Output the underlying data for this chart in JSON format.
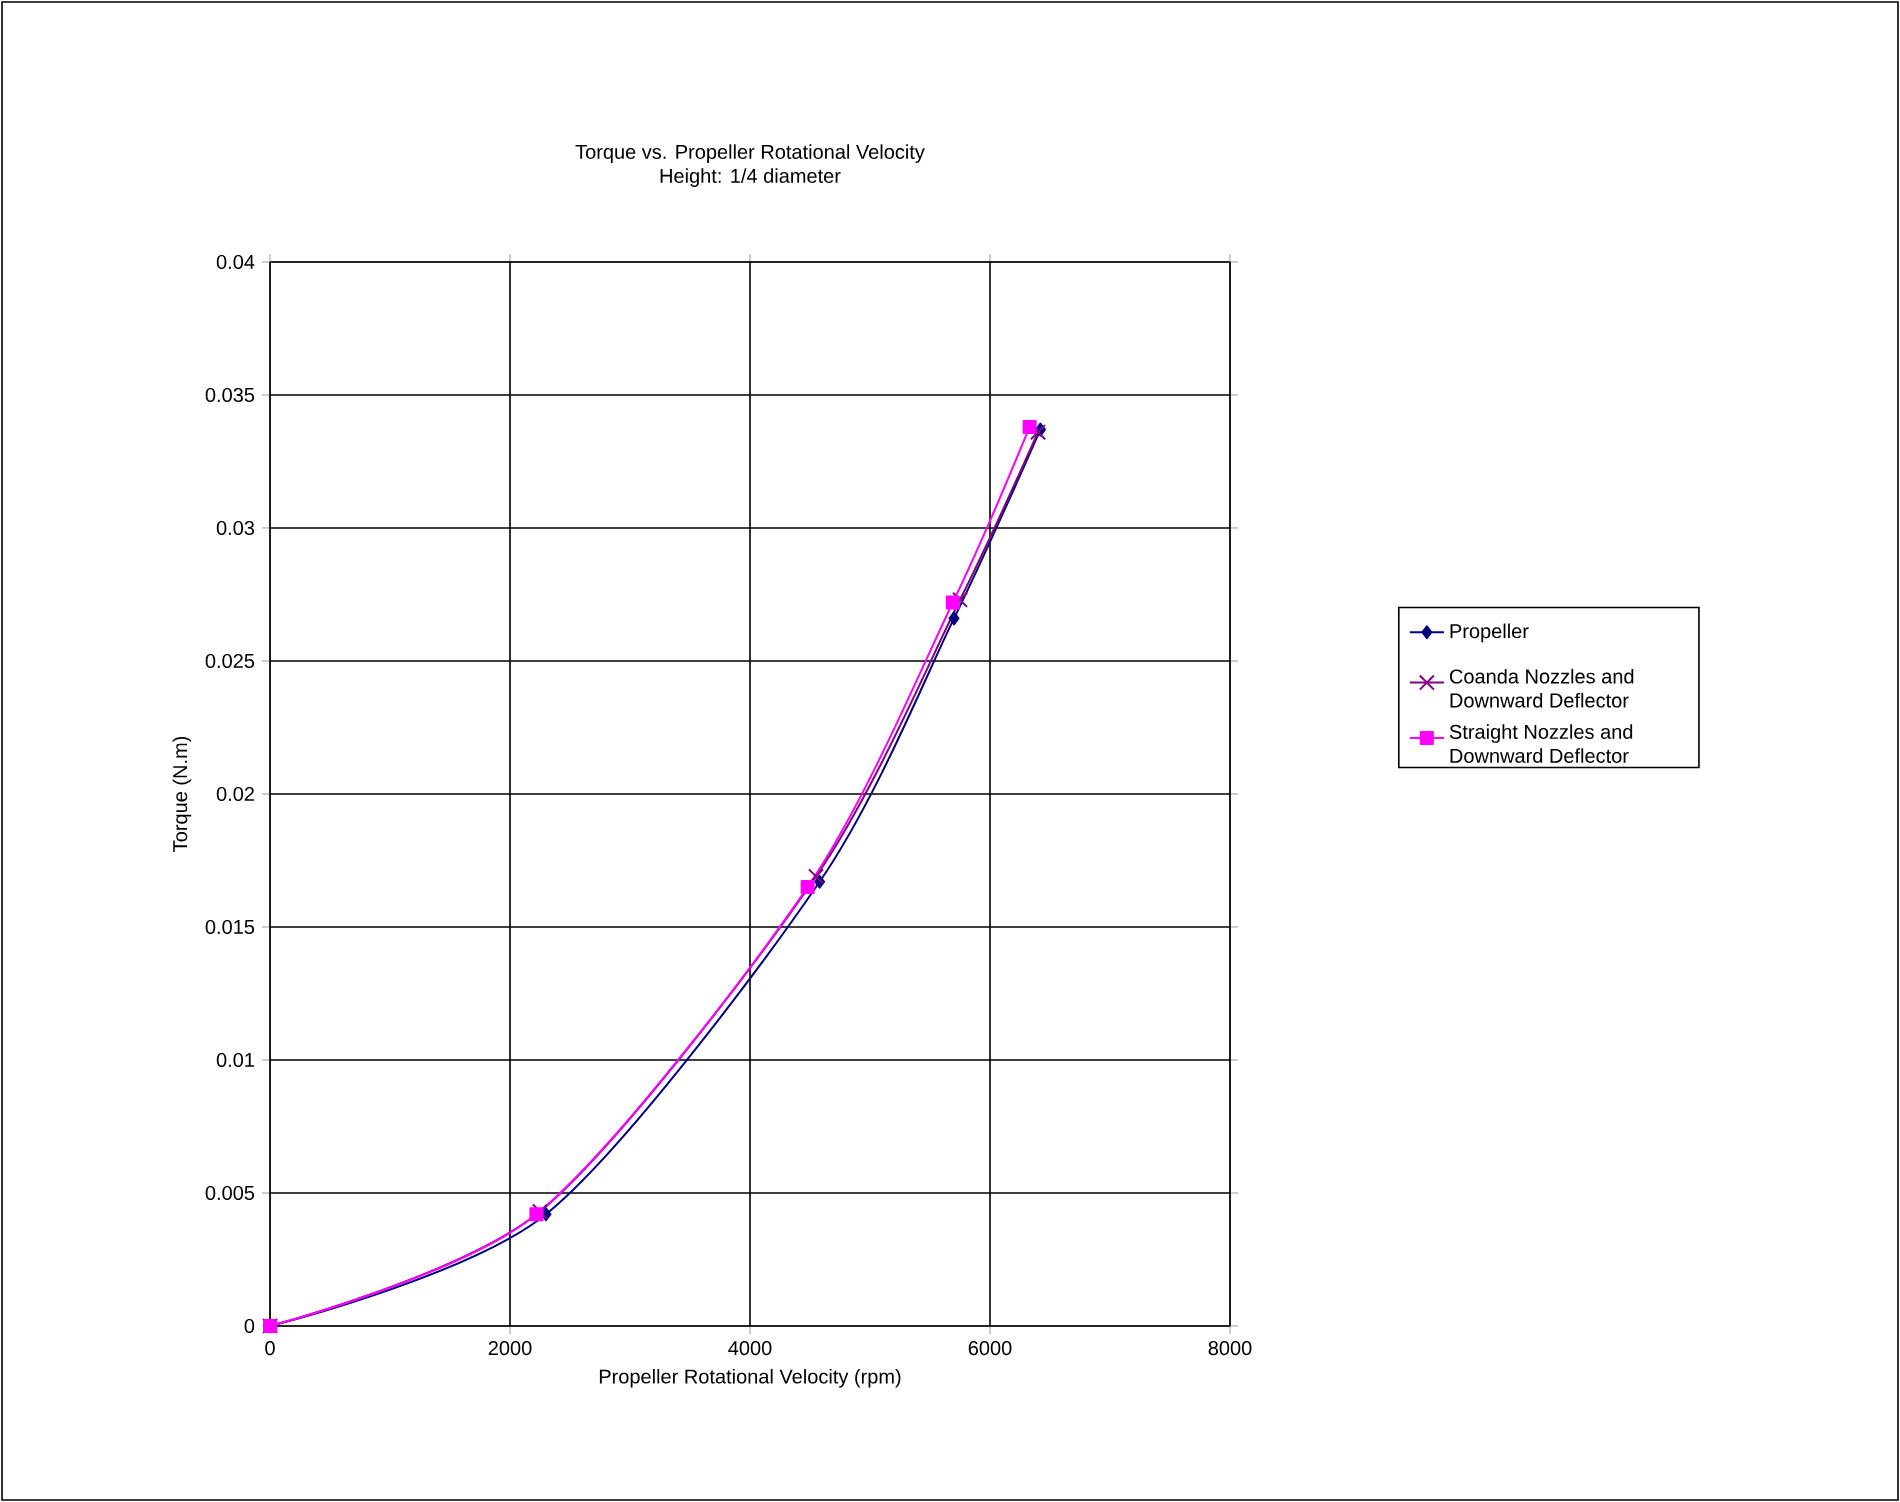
{
  "chart_data": {
    "type": "line",
    "title": "Torque vs. Propeller Rotational Velocity",
    "subtitle": "Height: 1/4 diameter",
    "xlabel": "Propeller Rotational Velocity (rpm)",
    "ylabel": "Torque (N.m)",
    "xlim": [
      0,
      8000
    ],
    "xticks": [
      0,
      2000,
      4000,
      6000,
      8000
    ],
    "ylim": [
      0,
      0.04
    ],
    "yticks": [
      0,
      0.005,
      0.01,
      0.015,
      0.02,
      0.025,
      0.03,
      0.035,
      0.04
    ],
    "grid": true,
    "legend": "right",
    "series": [
      {
        "name": "Propeller",
        "color": "#000080",
        "marker": "diamond",
        "x": [
          0,
          2300,
          4580,
          5700,
          6420
        ],
        "values": [
          0,
          0.0042,
          0.0167,
          0.0266,
          0.0337
        ]
      },
      {
        "name": "Coanda Nozzles and Downward Deflector",
        "color": "#800080",
        "marker": "cross",
        "x": [
          0,
          2250,
          4550,
          5750,
          6400
        ],
        "values": [
          0,
          0.0043,
          0.0169,
          0.0273,
          0.0336
        ]
      },
      {
        "name": "Straight Nozzles and Downward Deflector",
        "color": "#ff00ff",
        "marker": "square",
        "x": [
          0,
          2220,
          4480,
          5690,
          6330
        ],
        "values": [
          0,
          0.0042,
          0.0165,
          0.0272,
          0.0338
        ]
      }
    ]
  }
}
